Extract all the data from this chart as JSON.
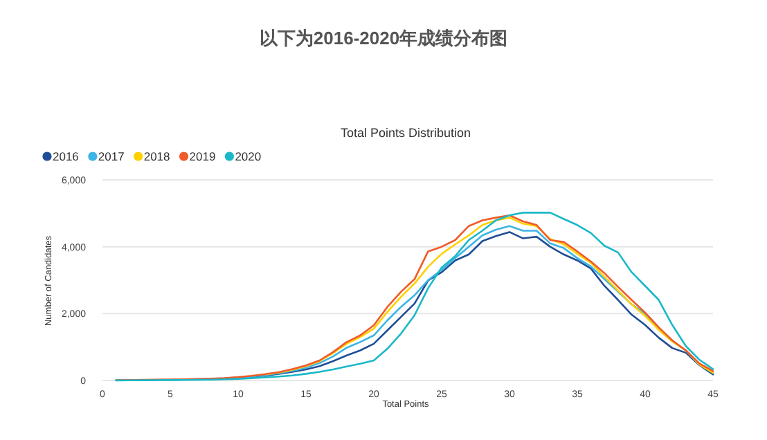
{
  "chart_data": {
    "type": "line",
    "title": "以下为2016-2020年成绩分布图",
    "subtitle": "Total Points Distribution",
    "xlabel": "Total Points",
    "ylabel": "Number of Candidates",
    "x": [
      1,
      2,
      3,
      4,
      5,
      6,
      7,
      8,
      9,
      10,
      11,
      12,
      13,
      14,
      15,
      16,
      17,
      18,
      19,
      20,
      21,
      22,
      23,
      24,
      25,
      26,
      27,
      28,
      29,
      30,
      31,
      32,
      33,
      34,
      35,
      36,
      37,
      38,
      39,
      40,
      41,
      42,
      43,
      44,
      45
    ],
    "series": [
      {
        "name": "2016",
        "color": "#1f4e96",
        "values": [
          null,
          null,
          null,
          null,
          null,
          null,
          null,
          null,
          null,
          null,
          110,
          150,
          200,
          260,
          330,
          430,
          580,
          750,
          900,
          1100,
          1500,
          1900,
          2300,
          2990,
          3240,
          3590,
          3770,
          4170,
          4320,
          4440,
          4250,
          4300,
          4000,
          3770,
          3590,
          3350,
          2830,
          2410,
          1970,
          1660,
          1280,
          970,
          830,
          460,
          180
        ]
      },
      {
        "name": "2017",
        "color": "#3cb4e6",
        "values": [
          5,
          8,
          12,
          18,
          22,
          28,
          38,
          50,
          65,
          90,
          120,
          165,
          220,
          290,
          380,
          520,
          720,
          980,
          1150,
          1350,
          1800,
          2200,
          2550,
          3000,
          3310,
          3660,
          4000,
          4340,
          4510,
          4620,
          4480,
          4480,
          4100,
          3960,
          3660,
          3410,
          3030,
          2660,
          2280,
          2000,
          1520,
          1170,
          900,
          480,
          230
        ]
      },
      {
        "name": "2018",
        "color": "#ffd000",
        "values": [
          null,
          null,
          null,
          null,
          null,
          null,
          null,
          null,
          null,
          null,
          null,
          180,
          240,
          320,
          430,
          580,
          820,
          1100,
          1300,
          1550,
          2050,
          2500,
          2900,
          3400,
          3790,
          4070,
          4340,
          4650,
          4790,
          4870,
          4690,
          4620,
          4230,
          4070,
          3790,
          3520,
          3100,
          2690,
          2280,
          1930,
          1520,
          1170,
          900,
          480,
          230
        ]
      },
      {
        "name": "2019",
        "color": "#f05a28",
        "values": [
          10,
          15,
          20,
          25,
          30,
          35,
          45,
          55,
          70,
          100,
          140,
          190,
          250,
          340,
          450,
          600,
          850,
          1150,
          1350,
          1650,
          2200,
          2650,
          3030,
          3860,
          4000,
          4200,
          4620,
          4790,
          4870,
          4940,
          4760,
          4650,
          4200,
          4140,
          3860,
          3560,
          3210,
          2800,
          2410,
          2030,
          1590,
          1200,
          900,
          510,
          280
        ]
      },
      {
        "name": "2020",
        "color": "#1ab8c8",
        "values": [
          3,
          5,
          8,
          10,
          12,
          15,
          20,
          25,
          35,
          50,
          70,
          95,
          120,
          150,
          200,
          260,
          330,
          420,
          500,
          600,
          950,
          1400,
          1950,
          2760,
          3380,
          3720,
          4200,
          4480,
          4790,
          4940,
          5020,
          5020,
          5020,
          4830,
          4650,
          4410,
          4030,
          3830,
          3240,
          2830,
          2410,
          1660,
          1030,
          620,
          340
        ]
      }
    ],
    "xlim": [
      0,
      45
    ],
    "xticks": [
      0,
      5,
      10,
      15,
      20,
      25,
      30,
      35,
      40,
      45
    ],
    "ylim": [
      0,
      6000
    ],
    "yticks": [
      0,
      {
        "value": 2000,
        "label": "2,000"
      },
      {
        "value": 4000,
        "label": "4,000"
      },
      {
        "value": 6000,
        "label": "6,000"
      }
    ],
    "grid": "y",
    "legend": "top left",
    "marker": "none",
    "line_style": "solid"
  }
}
